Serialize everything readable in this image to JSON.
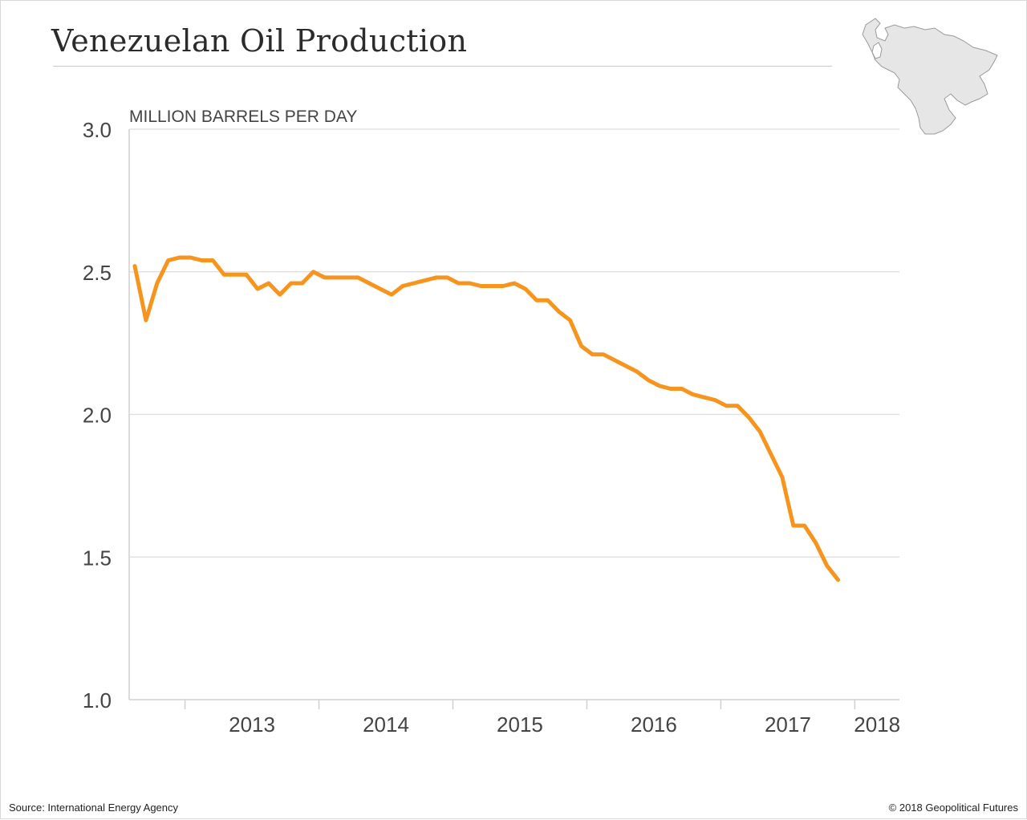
{
  "header": {
    "title": "Venezuelan Oil Production"
  },
  "footer": {
    "source": "Source: International Energy Agency",
    "copyright": "© 2018 Geopolitical Futures"
  },
  "map": {
    "region": "Venezuela",
    "icon": "venezuela-map-icon"
  },
  "colors": {
    "line": "#f7941d",
    "grid": "#dddddd",
    "axis": "#cfcfcf",
    "text": "#444444",
    "map_fill": "#e6e6e6",
    "map_stroke": "#9a9a9a"
  },
  "chart_data": {
    "type": "line",
    "title": "Venezuelan Oil Production",
    "ylabel": "MILLION BARRELS PER DAY",
    "xlabel": "",
    "ylim": [
      1.0,
      3.0
    ],
    "yticks": [
      "1.0",
      "1.5",
      "2.0",
      "2.5",
      "3.0"
    ],
    "xticks": [
      "2013",
      "2014",
      "2015",
      "2016",
      "2017",
      "2018"
    ],
    "grid": true,
    "legend": "none",
    "x_start": "2012-08",
    "x_end": "2018-04",
    "series": [
      {
        "values": [
          2.52,
          2.33,
          2.46,
          2.54,
          2.55,
          2.55,
          2.54,
          2.54,
          2.49,
          2.49,
          2.49,
          2.44,
          2.46,
          2.42,
          2.46,
          2.46,
          2.5,
          2.48,
          2.48,
          2.48,
          2.48,
          2.46,
          2.44,
          2.42,
          2.45,
          2.46,
          2.47,
          2.48,
          2.48,
          2.46,
          2.46,
          2.45,
          2.45,
          2.45,
          2.46,
          2.44,
          2.4,
          2.4,
          2.36,
          2.33,
          2.24,
          2.21,
          2.21,
          2.19,
          2.17,
          2.15,
          2.12,
          2.1,
          2.09,
          2.09,
          2.07,
          2.06,
          2.05,
          2.03,
          2.03,
          1.99,
          1.94,
          1.86,
          1.78,
          1.61,
          1.61,
          1.55,
          1.47,
          1.42
        ]
      }
    ]
  }
}
